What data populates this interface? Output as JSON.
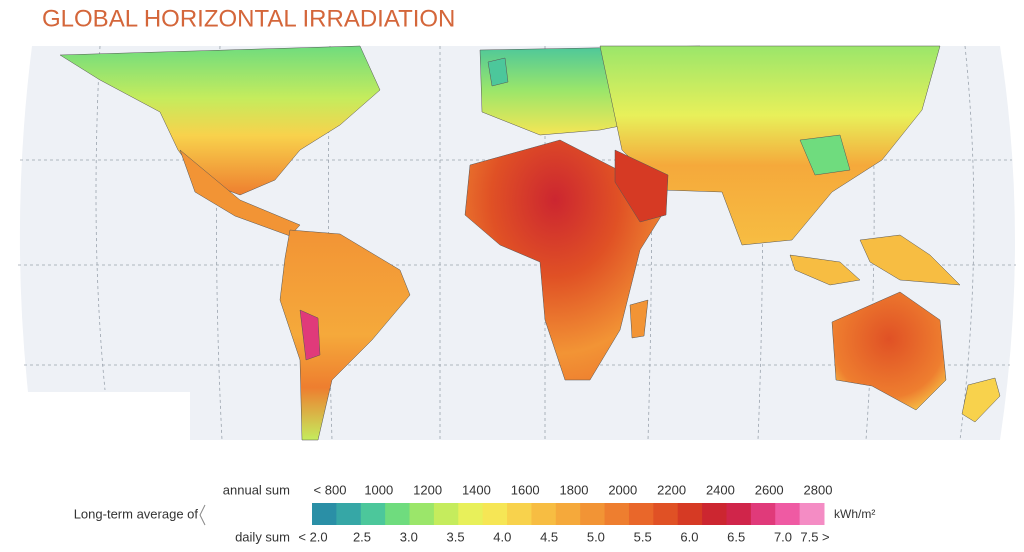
{
  "title": "GLOBAL HORIZONTAL IRRADIATION",
  "legend": {
    "caption": "Long-term average of",
    "annual_label": "annual sum",
    "annual_ticks": [
      "< 800",
      "1000",
      "1200",
      "1400",
      "1600",
      "1800",
      "2000",
      "2200",
      "2400",
      "2600",
      "2800"
    ],
    "daily_label": "daily sum",
    "daily_ticks": [
      "< 2.0",
      "2.5",
      "3.0",
      "3.5",
      "4.0",
      "4.5",
      "5.0",
      "5.5",
      "6.0",
      "6.5",
      "7.0",
      "7.5 >"
    ],
    "unit": "kWh/m²",
    "colors": [
      "#2a8fa6",
      "#36a7a6",
      "#4cc79b",
      "#6fdc7e",
      "#9be66a",
      "#c5ec5d",
      "#e8f05a",
      "#f6e655",
      "#f8d24c",
      "#f7bd42",
      "#f5a93b",
      "#f29435",
      "#ee7e2f",
      "#e9672a",
      "#e05125",
      "#d63a24",
      "#cc2630",
      "#d0254a",
      "#e03a7a",
      "#ef5aa3",
      "#f48cc4"
    ]
  }
}
